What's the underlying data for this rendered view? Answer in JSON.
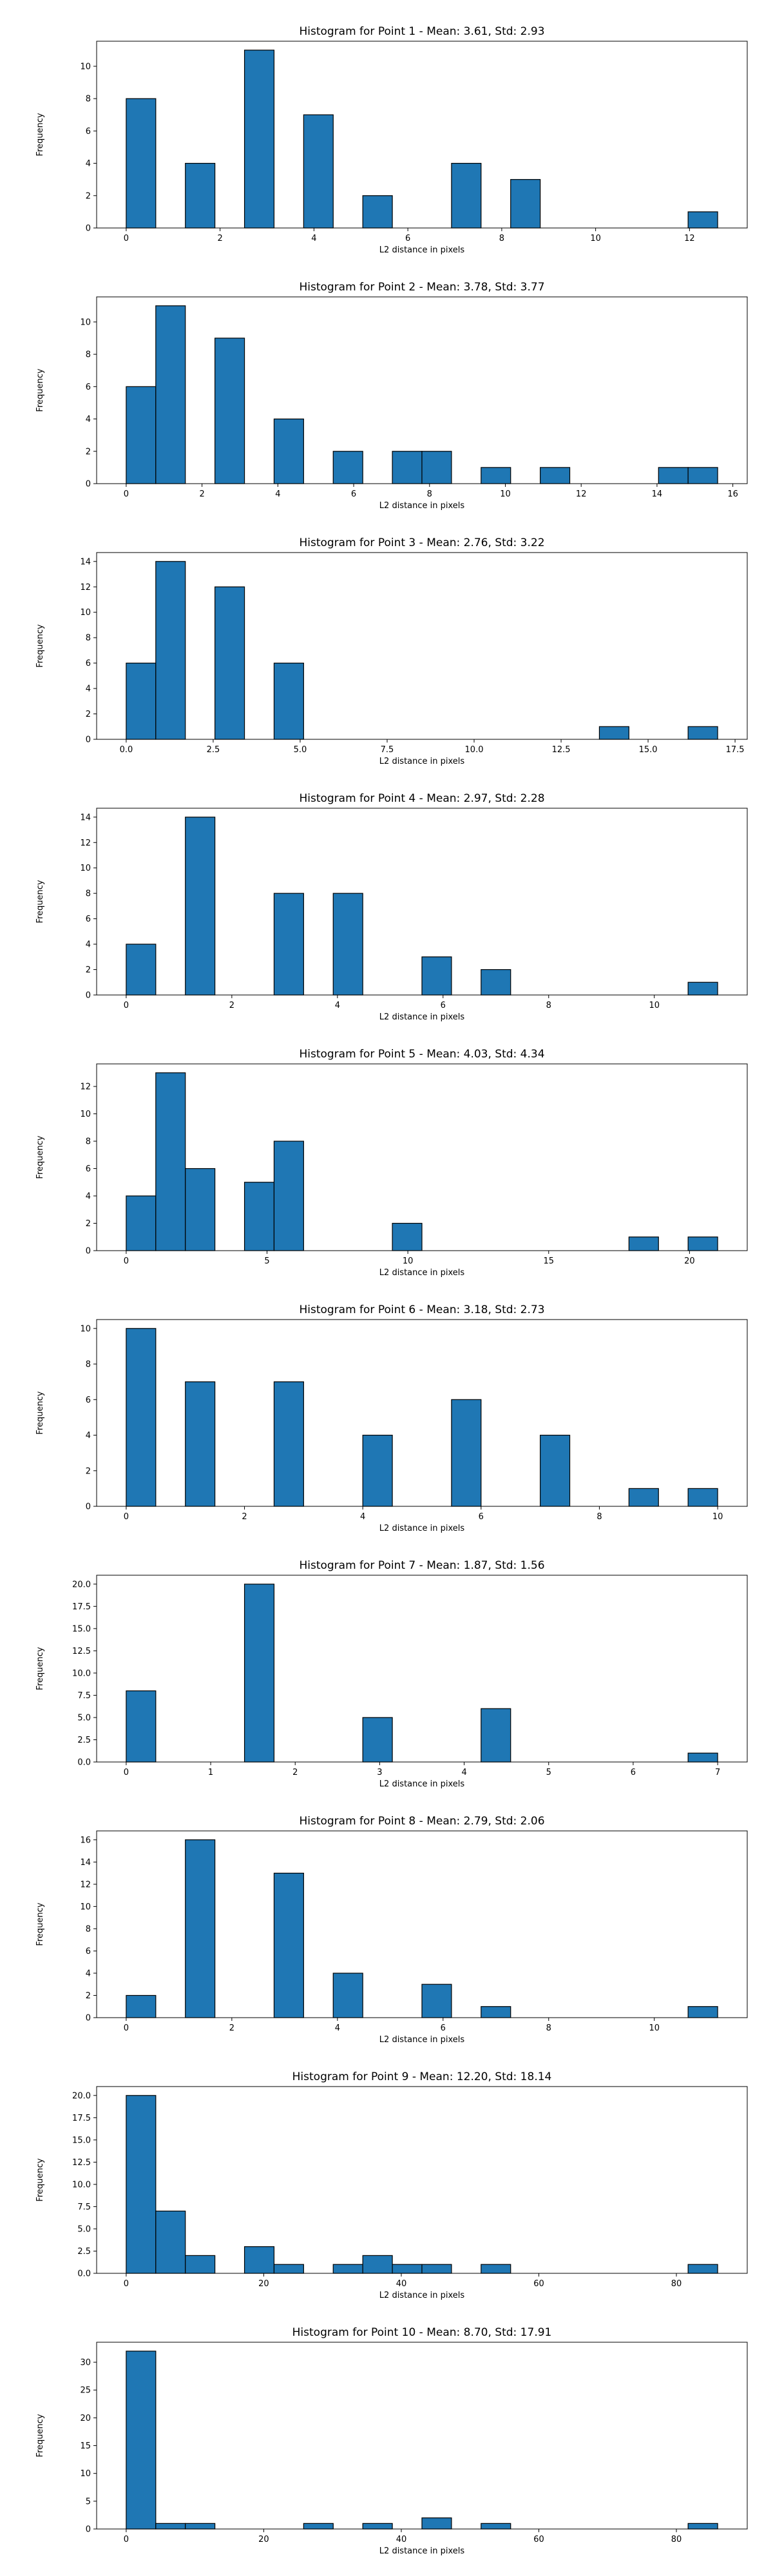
{
  "chart_data": [
    {
      "type": "bar",
      "title": "Histogram for Point 1 - Mean: 3.61, Std: 2.93",
      "xlabel": "L2 distance in pixels",
      "ylabel": "Frequency",
      "xlim": [
        -0.63,
        13.23
      ],
      "ylim": [
        0,
        11.55
      ],
      "xticks": [
        0,
        2,
        4,
        6,
        8,
        10,
        12
      ],
      "xtick_labels": [
        "0",
        "2",
        "4",
        "6",
        "8",
        "10",
        "12"
      ],
      "yticks": [
        0,
        2,
        4,
        6,
        8,
        10
      ],
      "ytick_labels": [
        "0",
        "2",
        "4",
        "6",
        "8",
        "10"
      ],
      "bins": [
        {
          "x0": 0.0,
          "x1": 0.63,
          "count": 8
        },
        {
          "x0": 1.26,
          "x1": 1.89,
          "count": 4
        },
        {
          "x0": 2.52,
          "x1": 3.15,
          "count": 11
        },
        {
          "x0": 3.78,
          "x1": 4.41,
          "count": 7
        },
        {
          "x0": 5.04,
          "x1": 5.67,
          "count": 2
        },
        {
          "x0": 6.93,
          "x1": 7.56,
          "count": 4
        },
        {
          "x0": 7.56,
          "x1": 8.19,
          "count": 0
        },
        {
          "x0": 8.19,
          "x1": 8.82,
          "count": 3
        },
        {
          "x0": 11.97,
          "x1": 12.6,
          "count": 1
        }
      ]
    },
    {
      "type": "bar",
      "title": "Histogram for Point 2 - Mean: 3.78, Std: 3.77",
      "xlabel": "L2 distance in pixels",
      "ylabel": "Frequency",
      "xlim": [
        -0.78,
        16.38
      ],
      "ylim": [
        0,
        11.55
      ],
      "xticks": [
        0,
        2,
        4,
        6,
        8,
        10,
        12,
        14,
        16
      ],
      "xtick_labels": [
        "0",
        "2",
        "4",
        "6",
        "8",
        "10",
        "12",
        "14",
        "16"
      ],
      "yticks": [
        0,
        2,
        4,
        6,
        8,
        10
      ],
      "ytick_labels": [
        "0",
        "2",
        "4",
        "6",
        "8",
        "10"
      ],
      "bins": [
        {
          "x0": 0.0,
          "x1": 0.78,
          "count": 6
        },
        {
          "x0": 0.78,
          "x1": 1.56,
          "count": 11
        },
        {
          "x0": 2.34,
          "x1": 3.12,
          "count": 9
        },
        {
          "x0": 3.9,
          "x1": 4.68,
          "count": 4
        },
        {
          "x0": 5.46,
          "x1": 6.24,
          "count": 2
        },
        {
          "x0": 7.02,
          "x1": 7.8,
          "count": 2
        },
        {
          "x0": 7.8,
          "x1": 8.58,
          "count": 2
        },
        {
          "x0": 9.36,
          "x1": 10.14,
          "count": 1
        },
        {
          "x0": 10.92,
          "x1": 11.7,
          "count": 1
        },
        {
          "x0": 14.04,
          "x1": 14.82,
          "count": 1
        },
        {
          "x0": 14.82,
          "x1": 15.6,
          "count": 1
        }
      ]
    },
    {
      "type": "bar",
      "title": "Histogram for Point 3 - Mean: 2.76, Std: 3.22",
      "xlabel": "L2 distance in pixels",
      "ylabel": "Frequency",
      "xlim": [
        -0.85,
        17.85
      ],
      "ylim": [
        0,
        14.7
      ],
      "xticks": [
        0.0,
        2.5,
        5.0,
        7.5,
        10.0,
        12.5,
        15.0,
        17.5
      ],
      "xtick_labels": [
        "0.0",
        "2.5",
        "5.0",
        "7.5",
        "10.0",
        "12.5",
        "15.0",
        "17.5"
      ],
      "yticks": [
        0,
        2,
        4,
        6,
        8,
        10,
        12,
        14
      ],
      "ytick_labels": [
        "0",
        "2",
        "4",
        "6",
        "8",
        "10",
        "12",
        "14"
      ],
      "bins": [
        {
          "x0": 0.0,
          "x1": 0.85,
          "count": 6
        },
        {
          "x0": 0.85,
          "x1": 1.7,
          "count": 14
        },
        {
          "x0": 2.55,
          "x1": 3.4,
          "count": 12
        },
        {
          "x0": 4.25,
          "x1": 5.1,
          "count": 6
        },
        {
          "x0": 13.6,
          "x1": 14.45,
          "count": 1
        },
        {
          "x0": 16.15,
          "x1": 17.0,
          "count": 1
        }
      ]
    },
    {
      "type": "bar",
      "title": "Histogram for Point 4 - Mean: 2.97, Std: 2.28",
      "xlabel": "L2 distance in pixels",
      "ylabel": "Frequency",
      "xlim": [
        -0.56,
        11.76
      ],
      "ylim": [
        0,
        14.7
      ],
      "xticks": [
        0,
        2,
        4,
        6,
        8,
        10
      ],
      "xtick_labels": [
        "0",
        "2",
        "4",
        "6",
        "8",
        "10"
      ],
      "yticks": [
        0,
        2,
        4,
        6,
        8,
        10,
        12,
        14
      ],
      "ytick_labels": [
        "0",
        "2",
        "4",
        "6",
        "8",
        "10",
        "12",
        "14"
      ],
      "bins": [
        {
          "x0": 0.0,
          "x1": 0.56,
          "count": 4
        },
        {
          "x0": 1.12,
          "x1": 1.68,
          "count": 14
        },
        {
          "x0": 2.8,
          "x1": 3.36,
          "count": 8
        },
        {
          "x0": 3.92,
          "x1": 4.48,
          "count": 8
        },
        {
          "x0": 5.6,
          "x1": 6.16,
          "count": 3
        },
        {
          "x0": 6.72,
          "x1": 7.28,
          "count": 2
        },
        {
          "x0": 10.64,
          "x1": 11.2,
          "count": 1
        }
      ]
    },
    {
      "type": "bar",
      "title": "Histogram for Point 5 - Mean: 4.03, Std: 4.34",
      "xlabel": "L2 distance in pixels",
      "ylabel": "Frequency",
      "xlim": [
        -1.05,
        22.05
      ],
      "ylim": [
        0,
        13.65
      ],
      "xticks": [
        0,
        5,
        10,
        15,
        20
      ],
      "xtick_labels": [
        "0",
        "5",
        "10",
        "15",
        "20"
      ],
      "yticks": [
        0,
        2,
        4,
        6,
        8,
        10,
        12
      ],
      "ytick_labels": [
        "0",
        "2",
        "4",
        "6",
        "8",
        "10",
        "12"
      ],
      "bins": [
        {
          "x0": 0.0,
          "x1": 1.05,
          "count": 4
        },
        {
          "x0": 1.05,
          "x1": 2.1,
          "count": 13
        },
        {
          "x0": 2.1,
          "x1": 3.15,
          "count": 6
        },
        {
          "x0": 4.2,
          "x1": 5.25,
          "count": 5
        },
        {
          "x0": 5.25,
          "x1": 6.3,
          "count": 8
        },
        {
          "x0": 9.45,
          "x1": 10.5,
          "count": 2
        },
        {
          "x0": 17.85,
          "x1": 18.9,
          "count": 1
        },
        {
          "x0": 19.95,
          "x1": 21.0,
          "count": 1
        }
      ]
    },
    {
      "type": "bar",
      "title": "Histogram for Point 6 - Mean: 3.18, Std: 2.73",
      "xlabel": "L2 distance in pixels",
      "ylabel": "Frequency",
      "xlim": [
        -0.5,
        10.5
      ],
      "ylim": [
        0,
        10.5
      ],
      "xticks": [
        0,
        2,
        4,
        6,
        8,
        10
      ],
      "xtick_labels": [
        "0",
        "2",
        "4",
        "6",
        "8",
        "10"
      ],
      "yticks": [
        0,
        2,
        4,
        6,
        8,
        10
      ],
      "ytick_labels": [
        "0",
        "2",
        "4",
        "6",
        "8",
        "10"
      ],
      "bins": [
        {
          "x0": 0.0,
          "x1": 0.5,
          "count": 10
        },
        {
          "x0": 1.0,
          "x1": 1.5,
          "count": 7
        },
        {
          "x0": 2.5,
          "x1": 3.0,
          "count": 7
        },
        {
          "x0": 4.0,
          "x1": 4.5,
          "count": 4
        },
        {
          "x0": 5.5,
          "x1": 6.0,
          "count": 6
        },
        {
          "x0": 7.0,
          "x1": 7.5,
          "count": 4
        },
        {
          "x0": 8.5,
          "x1": 9.0,
          "count": 1
        },
        {
          "x0": 9.5,
          "x1": 10.0,
          "count": 1
        }
      ]
    },
    {
      "type": "bar",
      "title": "Histogram for Point 7 - Mean: 1.87, Std: 1.56",
      "xlabel": "L2 distance in pixels",
      "ylabel": "Frequency",
      "xlim": [
        -0.35,
        7.35
      ],
      "ylim": [
        0,
        21.0
      ],
      "xticks": [
        0,
        1,
        2,
        3,
        4,
        5,
        6,
        7
      ],
      "xtick_labels": [
        "0",
        "1",
        "2",
        "3",
        "4",
        "5",
        "6",
        "7"
      ],
      "yticks": [
        0.0,
        2.5,
        5.0,
        7.5,
        10.0,
        12.5,
        15.0,
        17.5,
        20.0
      ],
      "ytick_labels": [
        "0.0",
        "2.5",
        "5.0",
        "7.5",
        "10.0",
        "12.5",
        "15.0",
        "17.5",
        "20.0"
      ],
      "bins": [
        {
          "x0": 0.0,
          "x1": 0.35,
          "count": 8
        },
        {
          "x0": 1.4,
          "x1": 1.75,
          "count": 20
        },
        {
          "x0": 2.8,
          "x1": 3.15,
          "count": 5
        },
        {
          "x0": 4.2,
          "x1": 4.55,
          "count": 6
        },
        {
          "x0": 6.65,
          "x1": 7.0,
          "count": 1
        }
      ]
    },
    {
      "type": "bar",
      "title": "Histogram for Point 8 - Mean: 2.79, Std: 2.06",
      "xlabel": "L2 distance in pixels",
      "ylabel": "Frequency",
      "xlim": [
        -0.56,
        11.76
      ],
      "ylim": [
        0,
        16.8
      ],
      "xticks": [
        0,
        2,
        4,
        6,
        8,
        10
      ],
      "xtick_labels": [
        "0",
        "2",
        "4",
        "6",
        "8",
        "10"
      ],
      "yticks": [
        0,
        2,
        4,
        6,
        8,
        10,
        12,
        14,
        16
      ],
      "ytick_labels": [
        "0",
        "2",
        "4",
        "6",
        "8",
        "10",
        "12",
        "14",
        "16"
      ],
      "bins": [
        {
          "x0": 0.0,
          "x1": 0.56,
          "count": 2
        },
        {
          "x0": 1.12,
          "x1": 1.68,
          "count": 16
        },
        {
          "x0": 2.8,
          "x1": 3.36,
          "count": 13
        },
        {
          "x0": 3.92,
          "x1": 4.48,
          "count": 4
        },
        {
          "x0": 5.6,
          "x1": 6.16,
          "count": 3
        },
        {
          "x0": 6.72,
          "x1": 7.28,
          "count": 1
        },
        {
          "x0": 10.64,
          "x1": 11.2,
          "count": 1
        }
      ]
    },
    {
      "type": "bar",
      "title": "Histogram for Point 9 - Mean: 12.20, Std: 18.14",
      "xlabel": "L2 distance in pixels",
      "ylabel": "Frequency",
      "xlim": [
        -4.3,
        90.3
      ],
      "ylim": [
        0,
        21.0
      ],
      "xticks": [
        0,
        20,
        40,
        60,
        80
      ],
      "xtick_labels": [
        "0",
        "20",
        "40",
        "60",
        "80"
      ],
      "yticks": [
        0.0,
        2.5,
        5.0,
        7.5,
        10.0,
        12.5,
        15.0,
        17.5,
        20.0
      ],
      "ytick_labels": [
        "0.0",
        "2.5",
        "5.0",
        "7.5",
        "10.0",
        "12.5",
        "15.0",
        "17.5",
        "20.0"
      ],
      "bins": [
        {
          "x0": 0.0,
          "x1": 4.3,
          "count": 20
        },
        {
          "x0": 4.3,
          "x1": 8.6,
          "count": 7
        },
        {
          "x0": 8.6,
          "x1": 12.9,
          "count": 2
        },
        {
          "x0": 17.2,
          "x1": 21.5,
          "count": 3
        },
        {
          "x0": 21.5,
          "x1": 25.8,
          "count": 1
        },
        {
          "x0": 30.1,
          "x1": 34.4,
          "count": 1
        },
        {
          "x0": 34.4,
          "x1": 38.7,
          "count": 2
        },
        {
          "x0": 38.7,
          "x1": 43.0,
          "count": 1
        },
        {
          "x0": 43.0,
          "x1": 47.3,
          "count": 1
        },
        {
          "x0": 51.6,
          "x1": 55.9,
          "count": 1
        },
        {
          "x0": 81.7,
          "x1": 86.0,
          "count": 1
        }
      ]
    },
    {
      "type": "bar",
      "title": "Histogram for Point 10 - Mean: 8.70, Std: 17.91",
      "xlabel": "L2 distance in pixels",
      "ylabel": "Frequency",
      "xlim": [
        -4.3,
        90.3
      ],
      "ylim": [
        0,
        33.6
      ],
      "xticks": [
        0,
        20,
        40,
        60,
        80
      ],
      "xtick_labels": [
        "0",
        "20",
        "40",
        "60",
        "80"
      ],
      "yticks": [
        0,
        5,
        10,
        15,
        20,
        25,
        30
      ],
      "ytick_labels": [
        "0",
        "5",
        "10",
        "15",
        "20",
        "25",
        "30"
      ],
      "bins": [
        {
          "x0": 0.0,
          "x1": 4.3,
          "count": 32
        },
        {
          "x0": 4.3,
          "x1": 8.6,
          "count": 1
        },
        {
          "x0": 8.6,
          "x1": 12.9,
          "count": 1
        },
        {
          "x0": 25.8,
          "x1": 30.1,
          "count": 1
        },
        {
          "x0": 34.4,
          "x1": 38.7,
          "count": 1
        },
        {
          "x0": 43.0,
          "x1": 47.3,
          "count": 2
        },
        {
          "x0": 51.6,
          "x1": 55.9,
          "count": 1
        },
        {
          "x0": 81.7,
          "x1": 86.0,
          "count": 1
        }
      ]
    }
  ]
}
